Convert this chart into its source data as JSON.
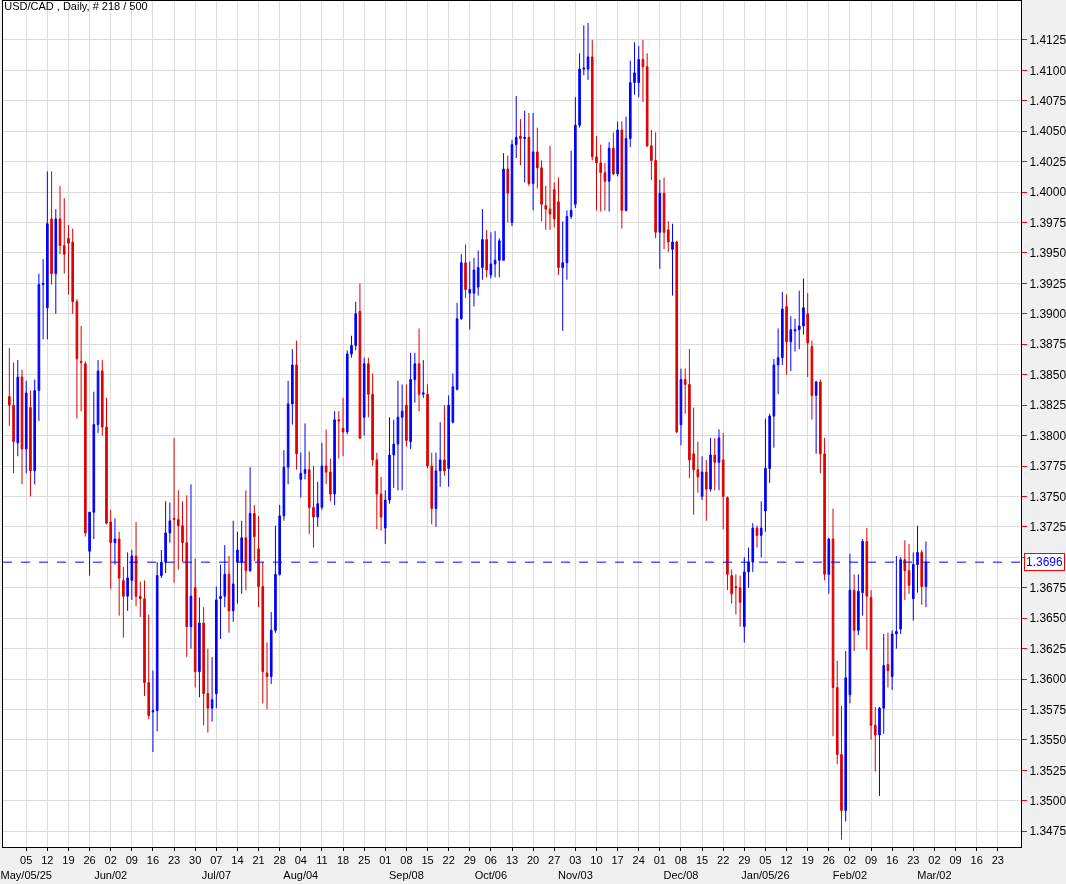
{
  "chart_data": {
    "type": "candlestick",
    "title": "USD/CAD , Daily, # 218 / 500",
    "categories": [
      null,
      null,
      null,
      null,
      null,
      "05",
      null,
      null,
      null,
      null,
      "12",
      null,
      null,
      null,
      null,
      "19",
      null,
      null,
      null,
      null,
      "26",
      null,
      null,
      null,
      null,
      "02",
      null,
      null,
      null,
      null,
      "09",
      null,
      null,
      null,
      null,
      "16",
      null,
      null,
      null,
      null,
      "23",
      null,
      null,
      null,
      null,
      "30",
      null,
      null,
      null,
      null,
      "07",
      null,
      null,
      null,
      null,
      "14",
      null,
      null,
      null,
      null,
      "21",
      null,
      null,
      null,
      null,
      "28",
      null,
      null,
      null,
      null,
      "04",
      null,
      null,
      null,
      null,
      "11",
      null,
      null,
      null,
      null,
      "18",
      null,
      null,
      null,
      null,
      "25",
      null,
      null,
      null,
      null,
      "01",
      null,
      null,
      null,
      null,
      "08",
      null,
      null,
      null,
      null,
      "15",
      null,
      null,
      null,
      null,
      "22",
      null,
      null,
      null,
      null,
      "29",
      null,
      null,
      null,
      null,
      "06",
      null,
      null,
      null,
      null,
      "13",
      null,
      null,
      null,
      null,
      "20",
      null,
      null,
      null,
      null,
      "27",
      null,
      null,
      null,
      null,
      "03",
      null,
      null,
      null,
      null,
      "10",
      null,
      null,
      null,
      null,
      "17",
      null,
      null,
      null,
      null,
      "24",
      null,
      null,
      null,
      null,
      "01",
      null,
      null,
      null,
      null,
      "08",
      null,
      null,
      null,
      null,
      "15",
      null,
      null,
      null,
      null,
      "22",
      null,
      null,
      null,
      null,
      "29",
      null,
      null,
      null,
      null,
      "05",
      null,
      null,
      null,
      null,
      "12",
      null,
      null,
      null,
      null,
      "19",
      null,
      null,
      null,
      null,
      "26",
      null,
      null,
      null,
      null,
      "02",
      null,
      null,
      null,
      null,
      "09",
      null,
      null,
      null,
      null,
      "16",
      null,
      null,
      null,
      null,
      "23",
      null,
      null,
      null,
      null,
      "02",
      null,
      null,
      null,
      null,
      "09",
      null,
      null,
      null,
      null,
      "16",
      null,
      null,
      null,
      null,
      "23",
      null,
      null,
      null,
      null,
      null
    ],
    "x2lim": [
      "2025-04-27T07:12",
      "2026-03-30T16:48"
    ],
    "x2ticks": [
      {
        "value": "2025-05-05",
        "label": "May/05/25"
      },
      {
        "value": "2025-06-02",
        "label": "Jun/02"
      },
      {
        "value": "2025-07-07",
        "label": "Jul/07"
      },
      {
        "value": "2025-08-04",
        "label": "Aug/04"
      },
      {
        "value": "2025-09-08",
        "label": "Sep/08"
      },
      {
        "value": "2025-10-06",
        "label": "Oct/06"
      },
      {
        "value": "2025-11-03",
        "label": "Nov/03"
      },
      {
        "value": "2025-12-08",
        "label": "Dec/08"
      },
      {
        "value": "2026-01-05",
        "label": "Jan/05/26"
      },
      {
        "value": "2026-02-02",
        "label": "Feb/02"
      },
      {
        "value": "2026-03-02",
        "label": "Mar/02"
      }
    ],
    "colors": [
      null,
      "#dd0000",
      "#dd0000",
      "#0000ff",
      "#dd0000",
      "#0000ff",
      "#dd0000",
      "#0000ff",
      "#0000ff",
      "#0000ff",
      "#0000ff",
      "#dd0000",
      "#0000ff",
      "#dd0000",
      "#dd0000",
      "#dd0000",
      "#dd0000",
      "#dd0000",
      "#dd0000",
      "#dd0000",
      "#0000ff",
      "#0000ff",
      "#0000ff",
      "#dd0000",
      "#dd0000",
      "#dd0000",
      "#0000ff",
      "#dd0000",
      "#dd0000",
      "#0000ff",
      "#0000ff",
      "#dd0000",
      "#dd0000",
      "#dd0000",
      "#dd0000",
      "#0000ff",
      "#0000ff",
      "#0000ff",
      "#0000ff",
      "#0000ff",
      "#dd0000",
      "#dd0000",
      "#dd0000",
      "#dd0000",
      "#0000ff",
      "#dd0000",
      "#0000ff",
      "#dd0000",
      "#dd0000",
      "#0000ff",
      "#0000ff",
      "#0000ff",
      "#0000ff",
      "#dd0000",
      "#0000ff",
      "#0000ff",
      "#0000ff",
      "#dd0000",
      "#0000ff",
      "#dd0000",
      "#dd0000",
      "#dd0000",
      "#dd0000",
      "#0000ff",
      "#0000ff",
      "#0000ff",
      "#0000ff",
      "#0000ff",
      "#0000ff",
      "#dd0000",
      "#0000ff",
      "#0000ff",
      "#dd0000",
      "#dd0000",
      "#0000ff",
      "#0000ff",
      "#dd0000",
      "#dd0000",
      "#0000ff",
      "#dd0000",
      "#dd0000",
      "#0000ff",
      "#0000ff",
      "#0000ff",
      "#dd0000",
      "#0000ff",
      "#dd0000",
      "#dd0000",
      "#dd0000",
      "#dd0000",
      "#0000ff",
      "#0000ff",
      "#0000ff",
      "#0000ff",
      "#0000ff",
      "#dd0000",
      "#0000ff",
      "#0000ff",
      "#dd0000",
      "#0000ff",
      "#dd0000",
      "#dd0000",
      "#0000ff",
      "#0000ff",
      "#dd0000",
      "#0000ff",
      "#0000ff",
      "#0000ff",
      "#0000ff",
      "#dd0000",
      "#0000ff",
      "#0000ff",
      "#0000ff",
      "#0000ff",
      "#dd0000",
      "#0000ff",
      "#0000ff",
      "#0000ff",
      "#0000ff",
      "#dd0000",
      "#0000ff",
      "#0000ff",
      "#dd0000",
      "#0000ff",
      "#dd0000",
      "#0000ff",
      "#dd0000",
      "#dd0000",
      "#dd0000",
      "#dd0000",
      "#dd0000",
      "#dd0000",
      "#0000ff",
      "#0000ff",
      "#0000ff",
      "#0000ff",
      "#0000ff",
      "#0000ff",
      "#0000ff",
      "#dd0000",
      "#dd0000",
      "#dd0000",
      "#dd0000",
      "#0000ff",
      "#dd0000",
      "#0000ff",
      "#dd0000",
      "#0000ff",
      "#0000ff",
      "#0000ff",
      "#0000ff",
      "#dd0000",
      "#dd0000",
      "#dd0000",
      "#dd0000",
      "#0000ff",
      "#dd0000",
      "#dd0000",
      "#0000ff",
      "#dd0000",
      "#0000ff",
      "#dd0000",
      "#dd0000",
      "#dd0000",
      "#dd0000",
      "#0000ff",
      "#dd0000",
      "#0000ff",
      "#dd0000",
      "#0000ff",
      "#dd0000",
      "#dd0000",
      "#dd0000",
      "#dd0000",
      "#dd0000",
      "#0000ff",
      "#0000ff",
      "#0000ff",
      "#dd0000",
      "#0000ff",
      "#0000ff",
      "#0000ff",
      "#0000ff",
      "#0000ff",
      "#0000ff",
      "#dd0000",
      "#0000ff",
      "#0000ff",
      "#0000ff",
      "#0000ff",
      "#dd0000",
      "#dd0000",
      "#0000ff",
      "#dd0000",
      "#dd0000",
      "#0000ff",
      "#dd0000",
      "#dd0000",
      "#dd0000",
      "#0000ff",
      "#0000ff",
      "#dd0000",
      "#0000ff",
      "#0000ff",
      "#dd0000",
      "#dd0000",
      "#dd0000",
      "#0000ff",
      "#0000ff",
      "#dd0000",
      "#0000ff",
      "#0000ff",
      "#0000ff",
      "#dd0000",
      "#dd0000",
      "#0000ff",
      "#0000ff",
      "#dd0000",
      "#0000ff",
      null,
      null,
      null,
      null,
      null,
      null,
      null,
      null,
      null,
      null,
      null,
      null,
      null,
      null,
      null,
      null,
      null,
      null,
      null,
      null,
      null,
      null
    ],
    "ohlc": [
      null,
      [
        1.3832,
        1.3872,
        1.3808,
        1.3825
      ],
      [
        1.3825,
        1.386,
        1.3769,
        1.3795
      ],
      [
        1.3794,
        1.3862,
        1.3783,
        1.3848
      ],
      [
        1.3848,
        1.3854,
        1.376,
        1.3789
      ],
      [
        1.3789,
        1.3845,
        1.3769,
        1.3835
      ],
      [
        1.3823,
        1.3837,
        1.375,
        1.3771
      ],
      [
        1.3771,
        1.3846,
        1.376,
        1.3837
      ],
      [
        1.3837,
        1.3933,
        1.3812,
        1.3924
      ],
      [
        1.3924,
        1.3945,
        1.3879,
        1.3925
      ],
      [
        1.3905,
        1.4017,
        1.3879,
        1.3974
      ],
      [
        1.3978,
        1.4017,
        1.3924,
        1.3933
      ],
      [
        1.3933,
        1.3986,
        1.39,
        1.3978
      ],
      [
        1.3978,
        1.4005,
        1.3949,
        1.3956
      ],
      [
        1.3956,
        1.3995,
        1.3933,
        1.3949
      ],
      [
        1.3962,
        1.3973,
        1.3916,
        1.3958
      ],
      [
        1.3959,
        1.397,
        1.39,
        1.391
      ],
      [
        1.391,
        1.3912,
        1.3814,
        1.3863
      ],
      [
        1.3861,
        1.389,
        1.382,
        1.386
      ],
      [
        1.3859,
        1.3861,
        1.3717,
        1.372
      ],
      [
        1.3705,
        1.3737,
        1.3685,
        1.3737
      ],
      [
        1.3737,
        1.3836,
        1.3715,
        1.3809
      ],
      [
        1.3809,
        1.3862,
        1.3802,
        1.3853
      ],
      [
        1.3853,
        1.3862,
        1.38,
        1.3807
      ],
      [
        1.3807,
        1.3831,
        1.3727,
        1.3728
      ],
      [
        1.3729,
        1.3739,
        1.3674,
        1.3712
      ],
      [
        1.3712,
        1.3732,
        1.3694,
        1.3715
      ],
      [
        1.3715,
        1.3721,
        1.3652,
        1.3683
      ],
      [
        1.3681,
        1.3692,
        1.3634,
        1.3668
      ],
      [
        1.3668,
        1.3704,
        1.3656,
        1.3683
      ],
      [
        1.3681,
        1.3706,
        1.3665,
        1.3701
      ],
      [
        1.3701,
        1.3729,
        1.366,
        1.3668
      ],
      [
        1.3668,
        1.368,
        1.3651,
        1.3666
      ],
      [
        1.3666,
        1.3681,
        1.3586,
        1.3597
      ],
      [
        1.3597,
        1.3653,
        1.3567,
        1.357
      ],
      [
        1.3573,
        1.3607,
        1.354,
        1.3574
      ],
      [
        1.3574,
        1.3696,
        1.3557,
        1.3685
      ],
      [
        1.3685,
        1.3706,
        1.3683,
        1.3696
      ],
      [
        1.3696,
        1.3746,
        1.3687,
        1.372
      ],
      [
        1.372,
        1.3745,
        1.3712,
        1.373
      ],
      [
        1.3732,
        1.3798,
        1.3679,
        1.3731
      ],
      [
        1.3731,
        1.3755,
        1.369,
        1.3726
      ],
      [
        1.3726,
        1.3746,
        1.3696,
        1.3712
      ],
      [
        1.3712,
        1.3751,
        1.3618,
        1.3643
      ],
      [
        1.3643,
        1.376,
        1.3625,
        1.3668
      ],
      [
        1.3675,
        1.3699,
        1.3593,
        1.3606
      ],
      [
        1.3606,
        1.3667,
        1.3585,
        1.3646
      ],
      [
        1.3646,
        1.3659,
        1.3562,
        1.3588
      ],
      [
        1.3588,
        1.3625,
        1.3556,
        1.3576
      ],
      [
        1.3576,
        1.3618,
        1.3565,
        1.3583
      ],
      [
        1.3588,
        1.3676,
        1.3576,
        1.3665
      ],
      [
        1.3666,
        1.3694,
        1.3633,
        1.3668
      ],
      [
        1.3668,
        1.371,
        1.3659,
        1.3686
      ],
      [
        1.3686,
        1.3701,
        1.3638,
        1.3656
      ],
      [
        1.3656,
        1.373,
        1.3647,
        1.3678
      ],
      [
        1.3696,
        1.3721,
        1.3662,
        1.3706
      ],
      [
        1.3696,
        1.373,
        1.367,
        1.3716
      ],
      [
        1.3716,
        1.3755,
        1.3673,
        1.3689
      ],
      [
        1.3689,
        1.3774,
        1.3688,
        1.3736
      ],
      [
        1.3736,
        1.3743,
        1.3697,
        1.3717
      ],
      [
        1.3707,
        1.3734,
        1.3659,
        1.3676
      ],
      [
        1.3676,
        1.3696,
        1.358,
        1.3606
      ],
      [
        1.3605,
        1.363,
        1.3575,
        1.3602
      ],
      [
        1.3602,
        1.3655,
        1.3596,
        1.364
      ],
      [
        1.364,
        1.3726,
        1.3638,
        1.3686
      ],
      [
        1.3686,
        1.3743,
        1.3685,
        1.3734
      ],
      [
        1.3734,
        1.3788,
        1.373,
        1.3774
      ],
      [
        1.3774,
        1.3845,
        1.376,
        1.3826
      ],
      [
        1.3826,
        1.3871,
        1.3809,
        1.3858
      ],
      [
        1.3858,
        1.3878,
        1.3772,
        1.3785
      ],
      [
        1.3764,
        1.3786,
        1.3749,
        1.3769
      ],
      [
        1.3769,
        1.381,
        1.3764,
        1.3772
      ],
      [
        1.3772,
        1.3787,
        1.3719,
        1.3741
      ],
      [
        1.3741,
        1.3775,
        1.3708,
        1.3733
      ],
      [
        1.3733,
        1.3762,
        1.3725,
        1.3744
      ],
      [
        1.3741,
        1.3794,
        1.3739,
        1.3775
      ],
      [
        1.3775,
        1.3805,
        1.376,
        1.377
      ],
      [
        1.377,
        1.3781,
        1.3746,
        1.3752
      ],
      [
        1.3752,
        1.382,
        1.3743,
        1.3813
      ],
      [
        1.3813,
        1.382,
        1.3781,
        1.3812
      ],
      [
        1.3806,
        1.3831,
        1.3783,
        1.3803
      ],
      [
        1.3803,
        1.387,
        1.3801,
        1.3867
      ],
      [
        1.3867,
        1.3882,
        1.3864,
        1.3874
      ],
      [
        1.3874,
        1.391,
        1.387,
        1.39
      ],
      [
        1.3902,
        1.3925,
        1.3797,
        1.3798
      ],
      [
        1.3815,
        1.3864,
        1.38,
        1.3859
      ],
      [
        1.3859,
        1.3864,
        1.3815,
        1.3834
      ],
      [
        1.3834,
        1.3851,
        1.3775,
        1.378
      ],
      [
        1.378,
        1.3786,
        1.3723,
        1.3752
      ],
      [
        1.3752,
        1.3766,
        1.3722,
        1.3733
      ],
      [
        1.3724,
        1.3755,
        1.3711,
        1.3747
      ],
      [
        1.3747,
        1.3815,
        1.3744,
        1.3784
      ],
      [
        1.3784,
        1.3813,
        1.3757,
        1.3793
      ],
      [
        1.3793,
        1.3845,
        1.3755,
        1.3815
      ],
      [
        1.3815,
        1.3842,
        1.3755,
        1.382
      ],
      [
        1.3825,
        1.3842,
        1.3791,
        1.3796
      ],
      [
        1.3795,
        1.3868,
        1.3789,
        1.3846
      ],
      [
        1.3846,
        1.3868,
        1.3827,
        1.3859
      ],
      [
        1.3859,
        1.3888,
        1.382,
        1.3834
      ],
      [
        1.3834,
        1.3862,
        1.3831,
        1.3835
      ],
      [
        1.3834,
        1.3842,
        1.3773,
        1.3775
      ],
      [
        1.3775,
        1.3786,
        1.3727,
        1.374
      ],
      [
        1.374,
        1.3786,
        1.3725,
        1.3771
      ],
      [
        1.3771,
        1.3811,
        1.3758,
        1.378
      ],
      [
        1.378,
        1.3825,
        1.3767,
        1.3771
      ],
      [
        1.3773,
        1.3833,
        1.3758,
        1.3825
      ],
      [
        1.3811,
        1.3851,
        1.381,
        1.384
      ],
      [
        1.3838,
        1.3909,
        1.3837,
        1.3896
      ],
      [
        1.3896,
        1.3949,
        1.3895,
        1.3942
      ],
      [
        1.3942,
        1.3957,
        1.3913,
        1.392
      ],
      [
        1.3917,
        1.3943,
        1.3887,
        1.392
      ],
      [
        1.3917,
        1.3946,
        1.3906,
        1.3936
      ],
      [
        1.3922,
        1.3952,
        1.3915,
        1.3938
      ],
      [
        1.3938,
        1.3986,
        1.3928,
        1.3961
      ],
      [
        1.3961,
        1.3969,
        1.393,
        1.3936
      ],
      [
        1.3932,
        1.3967,
        1.3929,
        1.3941
      ],
      [
        1.3941,
        1.3968,
        1.393,
        1.3944
      ],
      [
        1.3944,
        1.3962,
        1.393,
        1.396
      ],
      [
        1.3944,
        1.4032,
        1.3944,
        1.4019
      ],
      [
        1.4019,
        1.403,
        1.3975,
        1.3999
      ],
      [
        1.3975,
        1.4043,
        1.3972,
        1.4039
      ],
      [
        1.4039,
        1.4079,
        1.4028,
        1.4045
      ],
      [
        1.4046,
        1.406,
        1.4022,
        1.4044
      ],
      [
        1.4044,
        1.4067,
        1.4008,
        1.4045
      ],
      [
        1.4045,
        1.4065,
        1.4005,
        1.4007
      ],
      [
        1.4007,
        1.4065,
        1.3985,
        1.4033
      ],
      [
        1.4033,
        1.4053,
        1.4003,
        1.402
      ],
      [
        1.402,
        1.4026,
        1.3976,
        1.399
      ],
      [
        1.3989,
        1.4005,
        1.3969,
        1.3986
      ],
      [
        1.3986,
        1.4038,
        1.3969,
        1.3982
      ],
      [
        1.4002,
        1.4008,
        1.3971,
        1.3978
      ],
      [
        1.3992,
        1.4012,
        1.3932,
        1.3938
      ],
      [
        1.3938,
        1.3976,
        1.3886,
        1.3942
      ],
      [
        1.3942,
        1.3985,
        1.3928,
        1.398
      ],
      [
        1.398,
        1.4034,
        1.3978,
        1.3985
      ],
      [
        1.399,
        1.4078,
        1.3987,
        1.4055
      ],
      [
        1.4055,
        1.4114,
        1.4053,
        1.4101
      ],
      [
        1.4101,
        1.4137,
        1.4096,
        1.4102
      ],
      [
        1.4101,
        1.4139,
        1.4092,
        1.4111
      ],
      [
        1.4111,
        1.4125,
        1.4026,
        1.4029
      ],
      [
        1.4029,
        1.4046,
        1.3985,
        1.4024
      ],
      [
        1.4024,
        1.4039,
        1.3984,
        1.4016
      ],
      [
        1.4016,
        1.4024,
        1.3985,
        1.4009
      ],
      [
        1.4009,
        1.4041,
        1.3984,
        1.4036
      ],
      [
        1.4036,
        1.4049,
        1.4014,
        1.4015
      ],
      [
        1.4015,
        1.4058,
        1.4013,
        1.4051
      ],
      [
        1.4051,
        1.4058,
        1.397,
        1.3985
      ],
      [
        1.3985,
        1.4062,
        1.3984,
        1.4044
      ],
      [
        1.4044,
        1.4108,
        1.4037,
        1.409
      ],
      [
        1.409,
        1.4123,
        1.408,
        1.4098
      ],
      [
        1.409,
        1.412,
        1.4078,
        1.4109
      ],
      [
        1.4109,
        1.4125,
        1.4074,
        1.4103
      ],
      [
        1.4103,
        1.4114,
        1.4037,
        1.4038
      ],
      [
        1.4038,
        1.4051,
        1.401,
        1.4026
      ],
      [
        1.4026,
        1.4049,
        1.3962,
        1.3967
      ],
      [
        1.3967,
        1.401,
        1.3937,
        1.3999
      ],
      [
        1.3999,
        1.4012,
        1.3953,
        1.3967
      ],
      [
        1.3969,
        1.3976,
        1.3951,
        1.3959
      ],
      [
        1.3953,
        1.3974,
        1.3915,
        1.3959
      ],
      [
        1.3959,
        1.396,
        1.3802,
        1.3803
      ],
      [
        1.3809,
        1.3855,
        1.3792,
        1.3846
      ],
      [
        1.3846,
        1.3855,
        1.3818,
        1.3842
      ],
      [
        1.3842,
        1.3871,
        1.3765,
        1.378
      ],
      [
        1.3785,
        1.3823,
        1.3735,
        1.3772
      ],
      [
        1.3772,
        1.3795,
        1.3753,
        1.3766
      ],
      [
        1.375,
        1.3783,
        1.3747,
        1.377
      ],
      [
        1.377,
        1.378,
        1.373,
        1.3756
      ],
      [
        1.3756,
        1.3798,
        1.3754,
        1.3784
      ],
      [
        1.3784,
        1.3798,
        1.3755,
        1.3778
      ],
      [
        1.3778,
        1.3805,
        1.3755,
        1.3798
      ],
      [
        1.378,
        1.3802,
        1.3723,
        1.375
      ],
      [
        1.3749,
        1.375,
        1.3673,
        1.3686
      ],
      [
        1.3685,
        1.369,
        1.3662,
        1.367
      ],
      [
        1.3676,
        1.3686,
        1.3653,
        1.3675
      ],
      [
        1.3675,
        1.3685,
        1.3643,
        1.3663
      ],
      [
        1.3643,
        1.37,
        1.363,
        1.3688
      ],
      [
        1.3688,
        1.3708,
        1.3675,
        1.3696
      ],
      [
        1.3696,
        1.3728,
        1.3688,
        1.3724
      ],
      [
        1.3724,
        1.3726,
        1.3708,
        1.3718
      ],
      [
        1.3718,
        1.3746,
        1.37,
        1.3724
      ],
      [
        1.3738,
        1.3814,
        1.3721,
        1.3773
      ],
      [
        1.3773,
        1.3818,
        1.3761,
        1.3816
      ],
      [
        1.3816,
        1.3863,
        1.379,
        1.3858
      ],
      [
        1.3858,
        1.3888,
        1.3834,
        1.3864
      ],
      [
        1.3864,
        1.3918,
        1.3858,
        1.3904
      ],
      [
        1.3906,
        1.3916,
        1.385,
        1.3877
      ],
      [
        1.3877,
        1.3898,
        1.3853,
        1.3887
      ],
      [
        1.3886,
        1.3896,
        1.3869,
        1.3887
      ],
      [
        1.3887,
        1.3919,
        1.3871,
        1.389
      ],
      [
        1.389,
        1.3929,
        1.3883,
        1.3905
      ],
      [
        1.39,
        1.3917,
        1.3848,
        1.3876
      ],
      [
        1.3873,
        1.3878,
        1.3813,
        1.3833
      ],
      [
        1.3833,
        1.3845,
        1.3785,
        1.3844
      ],
      [
        1.3844,
        1.3846,
        1.3769,
        1.3785
      ],
      [
        1.3785,
        1.3798,
        1.3681,
        1.3686
      ],
      [
        1.3686,
        1.3716,
        1.367,
        1.3715
      ],
      [
        1.3715,
        1.374,
        1.3553,
        1.3593
      ],
      [
        1.3593,
        1.3615,
        1.353,
        1.3538
      ],
      [
        1.3538,
        1.3578,
        1.3468,
        1.3492
      ],
      [
        1.3492,
        1.3623,
        1.3483,
        1.3601
      ],
      [
        1.3587,
        1.3703,
        1.358,
        1.3673
      ],
      [
        1.3673,
        1.3686,
        1.3623,
        1.364
      ],
      [
        1.364,
        1.3686,
        1.3636,
        1.3672
      ],
      [
        1.3671,
        1.3715,
        1.3652,
        1.3713
      ],
      [
        1.3713,
        1.3724,
        1.3624,
        1.3668
      ],
      [
        1.3667,
        1.3673,
        1.355,
        1.3562
      ],
      [
        1.3562,
        1.3577,
        1.3524,
        1.3554
      ],
      [
        1.3554,
        1.3577,
        1.3504,
        1.3576
      ],
      [
        1.3576,
        1.3637,
        1.3555,
        1.3611
      ],
      [
        1.3612,
        1.3638,
        1.3593,
        1.3607
      ],
      [
        1.3602,
        1.364,
        1.3591,
        1.3637
      ],
      [
        1.3637,
        1.3701,
        1.3625,
        1.3639
      ],
      [
        1.3641,
        1.37,
        1.3637,
        1.3698
      ],
      [
        1.3698,
        1.3714,
        1.3665,
        1.3689
      ],
      [
        1.3689,
        1.3711,
        1.367,
        1.3677
      ],
      [
        1.3666,
        1.3704,
        1.3648,
        1.3694
      ],
      [
        1.3694,
        1.3726,
        1.3671,
        1.3704
      ],
      [
        1.3704,
        1.3706,
        1.3661,
        1.3676
      ],
      [
        1.3676,
        1.3713,
        1.3659,
        1.3696
      ],
      null,
      null,
      null,
      null,
      null,
      null,
      null,
      null,
      null,
      null,
      null,
      null,
      null,
      null,
      null,
      null,
      null,
      null,
      null,
      null,
      null,
      null
    ],
    "ylim": [
      1.3462,
      1.4157
    ],
    "yticks": [
      1.3475,
      {
        "value": 1.35,
        "label": "1.3500"
      },
      1.3525,
      {
        "value": 1.355,
        "label": "1.3550"
      },
      1.3575,
      {
        "value": 1.36,
        "label": "1.3600"
      },
      1.3625,
      {
        "value": 1.365,
        "label": "1.3650"
      },
      1.3675,
      {
        "value": 1.37,
        "label": null
      },
      1.3725,
      {
        "value": 1.375,
        "label": "1.3750"
      },
      1.3775,
      {
        "value": 1.38,
        "label": "1.3800"
      },
      1.3825,
      {
        "value": 1.385,
        "label": "1.3850"
      },
      1.3875,
      {
        "value": 1.39,
        "label": "1.3900"
      },
      1.3925,
      {
        "value": 1.395,
        "label": "1.3950"
      },
      1.3975,
      {
        "value": 1.4,
        "label": "1.4000"
      },
      1.4025,
      {
        "value": 1.405,
        "label": "1.4050"
      },
      1.4075,
      {
        "value": 1.41,
        "label": "1.4100"
      },
      1.4125
    ],
    "ref_lines": [
      {
        "axis": "y",
        "value": 1.3696,
        "label": "1.3696",
        "color": "#0000ff",
        "line_style": "dashed"
      }
    ],
    "grid": true
  }
}
